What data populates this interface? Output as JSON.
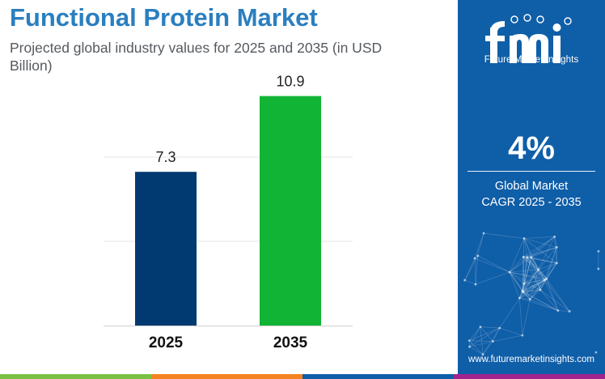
{
  "title": "Functional Protein Market",
  "subtitle": "Projected global industry values for 2025 and 2035 (in USD Billion)",
  "chart_data": {
    "type": "bar",
    "categories": [
      "2025",
      "2035"
    ],
    "values": [
      7.3,
      10.9
    ],
    "data_labels": [
      "7.3",
      "10.9"
    ],
    "bar_colors": [
      "#003a70",
      "#12b436"
    ],
    "ylim": [
      0,
      12
    ],
    "gridlines": true,
    "legend": "none"
  },
  "brand": {
    "logo_text": "fmi",
    "tagline": "Future Market Insights",
    "website": "www.futuremarketinsights.com"
  },
  "cagr": {
    "value": "4%",
    "label_line1": "Global Market",
    "label_line2": "CAGR 2025 - 2035"
  },
  "colors": {
    "title": "#2a7fc0",
    "panel": "#0f5ea8",
    "strip": [
      "#7ac143",
      "#f58220",
      "#0f5ea8",
      "#a3238e"
    ]
  }
}
